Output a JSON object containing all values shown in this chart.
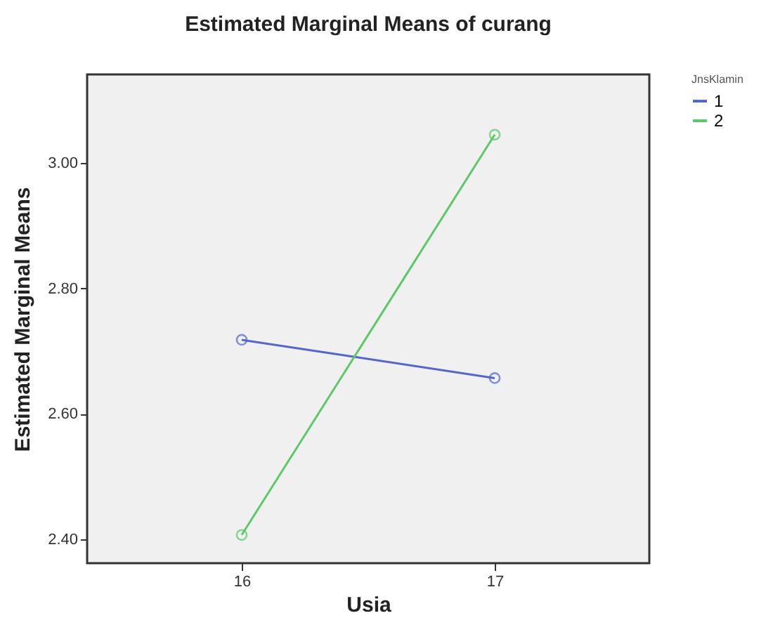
{
  "chart_data": {
    "type": "line",
    "title": "Estimated Marginal Means of curang",
    "xlabel": "Usia",
    "ylabel": "Estimated Marginal Means",
    "legend_title": "JnsKlamin",
    "categories": [
      "16",
      "17"
    ],
    "series": [
      {
        "name": "1",
        "color": "#5668c4",
        "values": [
          2.718,
          2.657
        ]
      },
      {
        "name": "2",
        "color": "#5cc86a",
        "values": [
          2.407,
          3.045
        ]
      }
    ],
    "ylim": [
      2.362,
      3.141
    ],
    "yticks": [
      {
        "value": 2.4,
        "label": "2.40"
      },
      {
        "value": 2.6,
        "label": "2.60"
      },
      {
        "value": 2.8,
        "label": "2.80"
      },
      {
        "value": 3.0,
        "label": "3.00"
      }
    ],
    "grid": false,
    "legend": "top right",
    "marker": "circle",
    "line_style": "solid"
  }
}
